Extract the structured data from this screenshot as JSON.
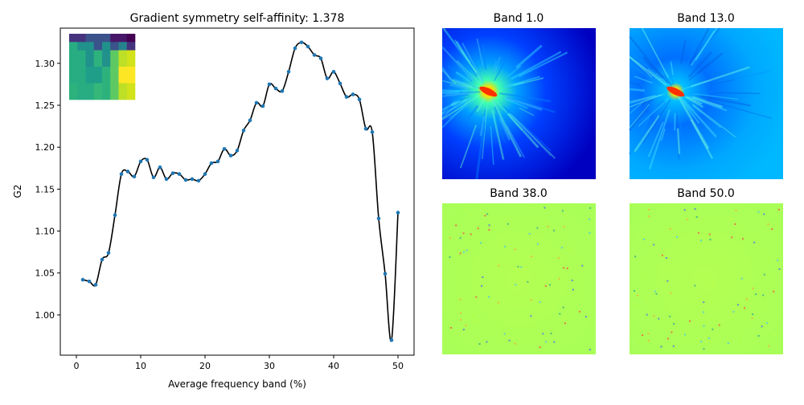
{
  "chart_data": {
    "type": "line",
    "title": "Gradient symmetry self-affinity: 1.378",
    "xlabel": "Average frequency band (%)",
    "ylabel": "G2",
    "xlim": [
      -2.5,
      52.5
    ],
    "ylim": [
      0.952,
      1.342
    ],
    "xticks": [
      0,
      10,
      20,
      30,
      40,
      50
    ],
    "yticks": [
      1.0,
      1.05,
      1.1,
      1.15,
      1.2,
      1.25,
      1.3
    ],
    "grid": false,
    "line_color": "#000000",
    "marker_color": "#1f77b4",
    "x": [
      1,
      2,
      3,
      4,
      5,
      6,
      7,
      8,
      9,
      10,
      11,
      12,
      13,
      14,
      15,
      16,
      17,
      18,
      19,
      20,
      21,
      22,
      23,
      24,
      25,
      26,
      27,
      28,
      29,
      30,
      31,
      32,
      33,
      34,
      35,
      36,
      37,
      38,
      39,
      40,
      41,
      42,
      43,
      44,
      45,
      46,
      47,
      48,
      49,
      50
    ],
    "y": [
      1.042,
      1.04,
      1.036,
      1.066,
      1.074,
      1.119,
      1.168,
      1.171,
      1.165,
      1.183,
      1.185,
      1.164,
      1.176,
      1.162,
      1.169,
      1.168,
      1.161,
      1.162,
      1.16,
      1.168,
      1.181,
      1.183,
      1.198,
      1.19,
      1.196,
      1.22,
      1.232,
      1.253,
      1.249,
      1.275,
      1.27,
      1.267,
      1.29,
      1.318,
      1.325,
      1.32,
      1.31,
      1.306,
      1.282,
      1.29,
      1.276,
      1.26,
      1.263,
      1.257,
      1.222,
      1.218,
      1.115,
      1.049,
      0.97,
      1.122
    ],
    "inset_grid_colors": [
      [
        "#46337e",
        "#46337e",
        "#3b528b",
        "#3b528b",
        "#3b528b",
        "#481769",
        "#481769",
        "#440154"
      ],
      [
        "#27ad81",
        "#21918c",
        "#21918c",
        "#3b528b",
        "#21918c",
        "#3b528b",
        "#26828e",
        "#46337e"
      ],
      [
        "#27ad81",
        "#27ad81",
        "#21918c",
        "#2db27d",
        "#21918c",
        "#5ec962",
        "#bddf26",
        "#d2e21b"
      ],
      [
        "#27ad81",
        "#27ad81",
        "#21918c",
        "#2db27d",
        "#21918c",
        "#5ec962",
        "#bddf26",
        "#d2e21b"
      ],
      [
        "#27ad81",
        "#27ad81",
        "#1f9e89",
        "#1f9e89",
        "#2db27d",
        "#5ec962",
        "#fde725",
        "#fde725"
      ],
      [
        "#27ad81",
        "#27ad81",
        "#1f9e89",
        "#1f9e89",
        "#2db27d",
        "#5ec962",
        "#fde725",
        "#fde725"
      ],
      [
        "#2db27d",
        "#27ad81",
        "#27ad81",
        "#35b779",
        "#2db27d",
        "#5ec962",
        "#bddf26",
        "#d2e21b"
      ],
      [
        "#2db27d",
        "#27ad81",
        "#27ad81",
        "#35b779",
        "#2db27d",
        "#5ec962",
        "#bddf26",
        "#d2e21b"
      ]
    ]
  },
  "bands": [
    {
      "title": "Band 1.0",
      "style": "low"
    },
    {
      "title": "Band 13.0",
      "style": "mid"
    },
    {
      "title": "Band 38.0",
      "style": "high"
    },
    {
      "title": "Band 50.0",
      "style": "high"
    }
  ]
}
